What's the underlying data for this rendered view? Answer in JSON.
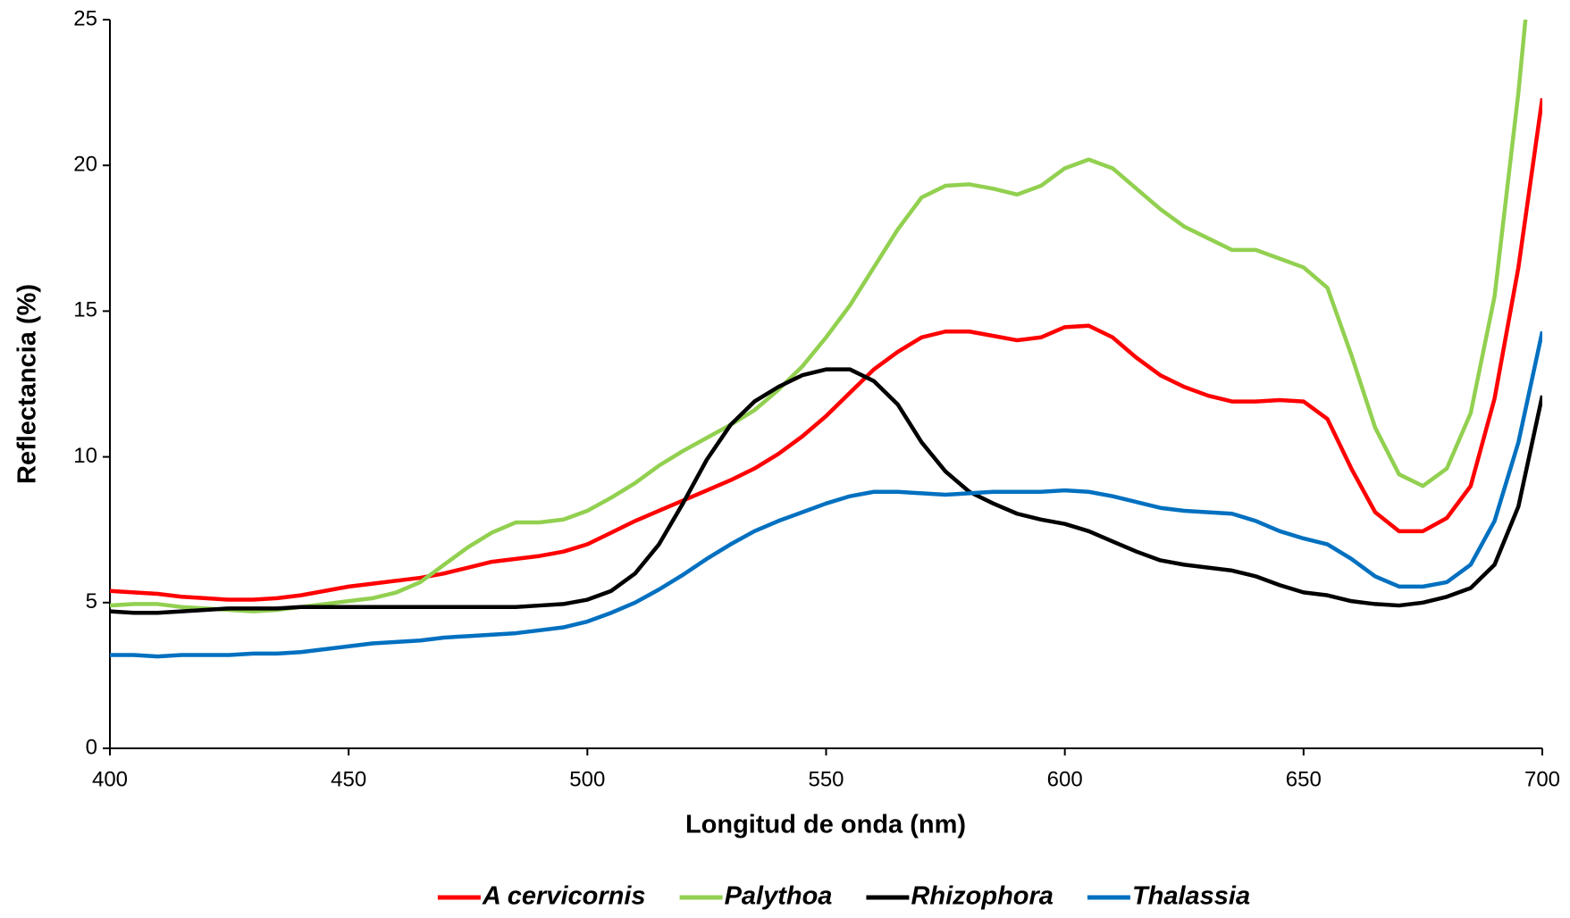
{
  "chart_data": {
    "type": "line",
    "xlabel": "Longitud de onda (nm)",
    "ylabel": "Reflectancia (%)",
    "xlim": [
      400,
      700
    ],
    "ylim": [
      0,
      25
    ],
    "xticks": [
      400,
      450,
      500,
      550,
      600,
      650,
      700
    ],
    "yticks": [
      0,
      5,
      10,
      15,
      20,
      25
    ],
    "legend": "bottom",
    "x": [
      400,
      405,
      410,
      415,
      420,
      425,
      430,
      435,
      440,
      445,
      450,
      455,
      460,
      465,
      470,
      475,
      480,
      485,
      490,
      495,
      500,
      505,
      510,
      515,
      520,
      525,
      530,
      535,
      540,
      545,
      550,
      555,
      560,
      565,
      570,
      575,
      580,
      585,
      590,
      595,
      600,
      605,
      610,
      615,
      620,
      625,
      630,
      635,
      640,
      645,
      650,
      655,
      660,
      665,
      670,
      675,
      680,
      685,
      690,
      695,
      700
    ],
    "series": [
      {
        "name": "A cervicornis",
        "color": "#ff0000",
        "values": [
          5.4,
          5.35,
          5.3,
          5.2,
          5.15,
          5.1,
          5.1,
          5.15,
          5.25,
          5.4,
          5.55,
          5.65,
          5.75,
          5.85,
          6.0,
          6.2,
          6.4,
          6.5,
          6.6,
          6.75,
          7.0,
          7.4,
          7.8,
          8.15,
          8.5,
          8.85,
          9.2,
          9.6,
          10.1,
          10.7,
          11.4,
          12.2,
          13.0,
          13.6,
          14.1,
          14.3,
          14.3,
          14.15,
          14.0,
          14.1,
          14.45,
          14.5,
          14.1,
          13.4,
          12.8,
          12.4,
          12.1,
          11.9,
          11.9,
          11.95,
          11.9,
          11.3,
          9.6,
          8.1,
          7.45,
          7.45,
          7.9,
          9.0,
          12.0,
          16.5,
          22.3
        ]
      },
      {
        "name": "Palythoa",
        "color": "#92d050",
        "values": [
          4.9,
          4.95,
          4.95,
          4.85,
          4.8,
          4.75,
          4.7,
          4.75,
          4.85,
          4.95,
          5.05,
          5.15,
          5.35,
          5.7,
          6.3,
          6.9,
          7.4,
          7.75,
          7.75,
          7.85,
          8.15,
          8.6,
          9.1,
          9.7,
          10.2,
          10.65,
          11.1,
          11.6,
          12.3,
          13.1,
          14.1,
          15.2,
          16.5,
          17.8,
          18.9,
          19.3,
          19.35,
          19.2,
          19.0,
          19.3,
          19.9,
          20.2,
          19.9,
          19.2,
          18.5,
          17.9,
          17.5,
          17.1,
          17.1,
          16.8,
          16.5,
          15.8,
          13.5,
          11.0,
          9.4,
          9.0,
          9.6,
          11.5,
          15.5,
          22.5,
          31.0
        ]
      },
      {
        "name": "Rhizophora",
        "color": "#000000",
        "values": [
          4.7,
          4.65,
          4.65,
          4.7,
          4.75,
          4.8,
          4.8,
          4.8,
          4.85,
          4.85,
          4.85,
          4.85,
          4.85,
          4.85,
          4.85,
          4.85,
          4.85,
          4.85,
          4.9,
          4.95,
          5.1,
          5.4,
          6.0,
          7.0,
          8.4,
          9.9,
          11.1,
          11.9,
          12.4,
          12.8,
          13.0,
          13.0,
          12.6,
          11.8,
          10.5,
          9.5,
          8.8,
          8.4,
          8.05,
          7.85,
          7.7,
          7.45,
          7.1,
          6.75,
          6.45,
          6.3,
          6.2,
          6.1,
          5.9,
          5.6,
          5.35,
          5.25,
          5.05,
          4.95,
          4.9,
          5.0,
          5.2,
          5.5,
          6.3,
          8.3,
          12.1
        ]
      },
      {
        "name": "Thalassia",
        "color": "#0070c0",
        "values": [
          3.2,
          3.2,
          3.15,
          3.2,
          3.2,
          3.2,
          3.25,
          3.25,
          3.3,
          3.4,
          3.5,
          3.6,
          3.65,
          3.7,
          3.8,
          3.85,
          3.9,
          3.95,
          4.05,
          4.15,
          4.35,
          4.65,
          5.0,
          5.45,
          5.95,
          6.5,
          7.0,
          7.45,
          7.8,
          8.1,
          8.4,
          8.65,
          8.8,
          8.8,
          8.75,
          8.7,
          8.75,
          8.8,
          8.8,
          8.8,
          8.85,
          8.8,
          8.65,
          8.45,
          8.25,
          8.15,
          8.1,
          8.05,
          7.8,
          7.45,
          7.2,
          7.0,
          6.5,
          5.9,
          5.55,
          5.55,
          5.7,
          6.3,
          7.8,
          10.5,
          14.3
        ]
      }
    ]
  }
}
